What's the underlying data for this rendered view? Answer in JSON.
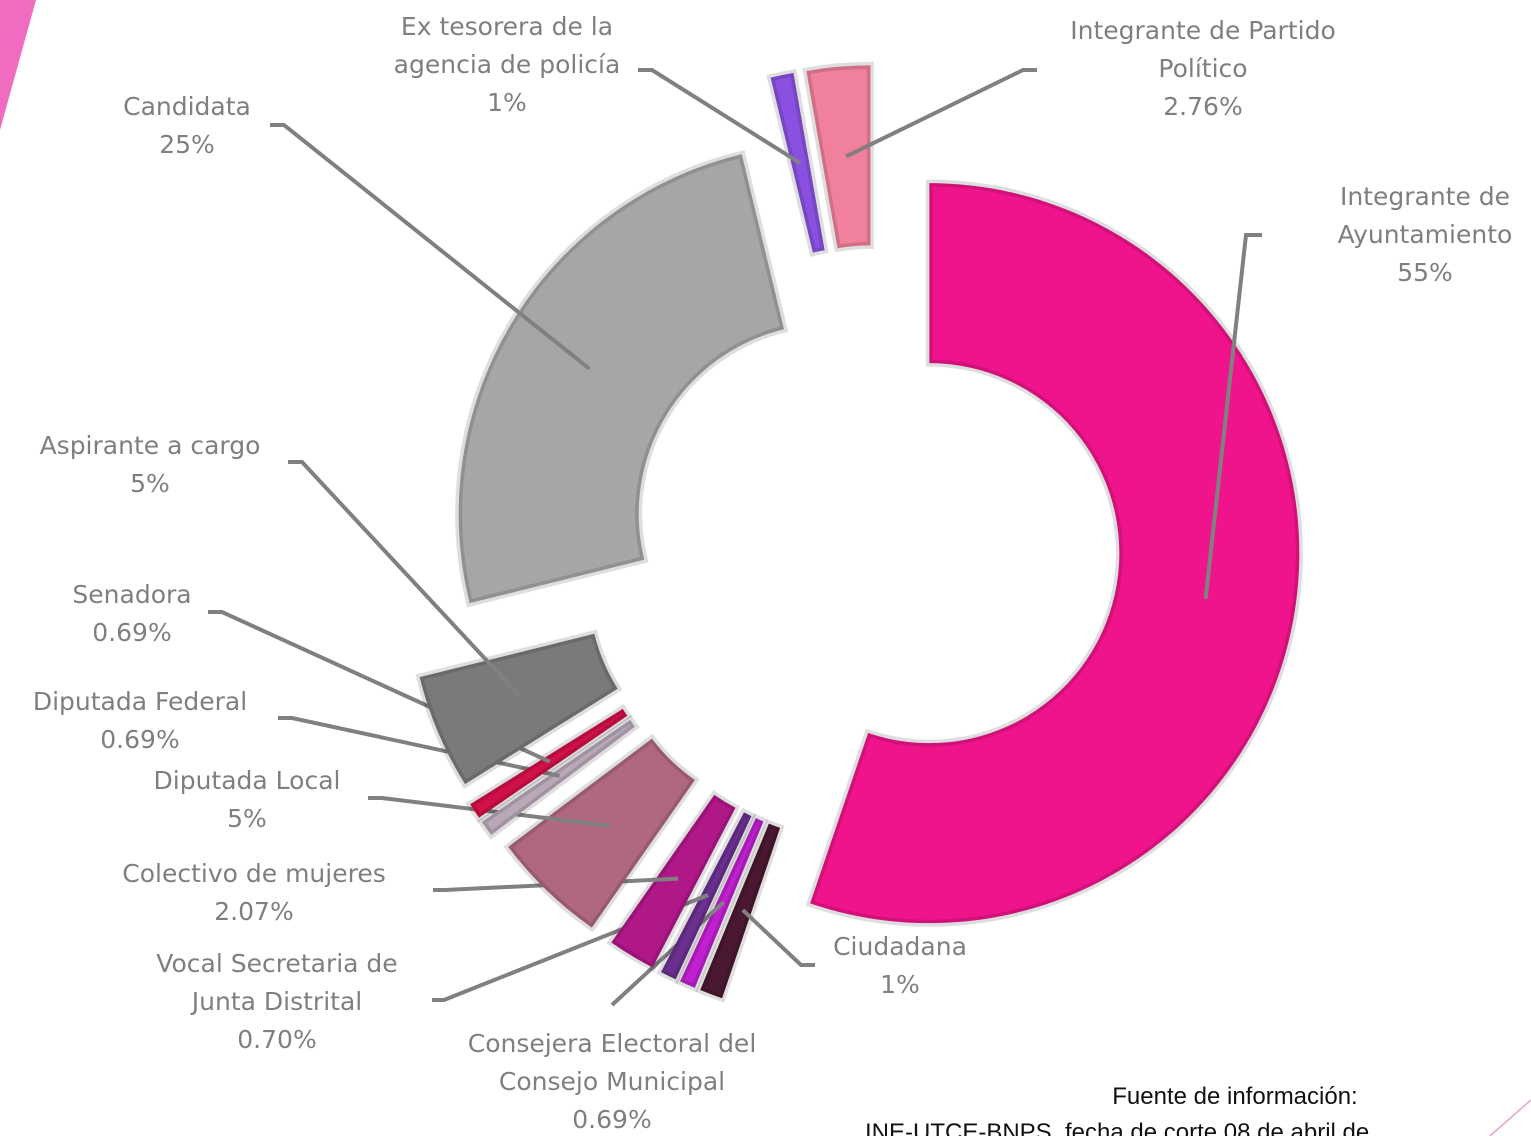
{
  "chart_data": {
    "type": "donut",
    "categories": [
      "Integrante de\nAyuntamiento",
      "Ciudadana",
      "Consejera Electoral del\nConsejo Municipal",
      "Vocal Secretaria de\nJunta Distrital",
      "Colectivo de mujeres",
      "Diputada Local",
      "Diputada Federal",
      "Senadora",
      "Aspirante a cargo",
      "Candidata",
      "Ex tesorera de la\nagencia de policía",
      "Integrante de Partido\nPolítico"
    ],
    "values": [
      55,
      1,
      0.69,
      0.7,
      2.07,
      5,
      0.69,
      0.69,
      5,
      25,
      1,
      2.76
    ],
    "value_labels": [
      "55%",
      "1%",
      "0.69%",
      "0.70%",
      "2.07%",
      "5%",
      "0.69%",
      "0.69%",
      "5%",
      "25%",
      "1%",
      "2.76%"
    ],
    "colors": [
      "#f0148c",
      "#4a1830",
      "#c020d0",
      "#6a3090",
      "#b01888",
      "#b06880",
      "#b8a8b8",
      "#d01048",
      "#7a7a7a",
      "#a6a6a6",
      "#8a50e0",
      "#f0809c"
    ],
    "source": [
      "Fuente de información:",
      "INE-UTCE-BNPS, fecha de corte 08 de abril de"
    ]
  }
}
